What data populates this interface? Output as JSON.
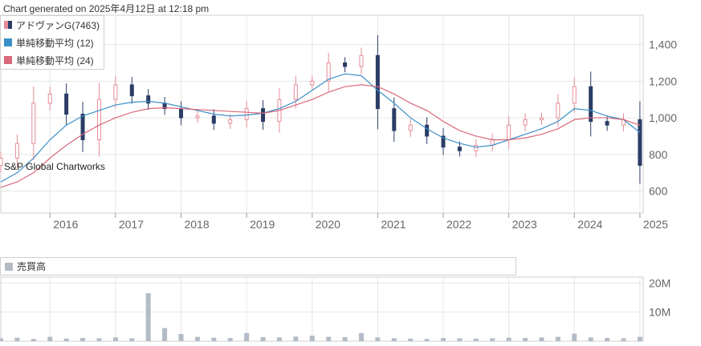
{
  "header": {
    "generated_text": "Chart generated on 2025年4月12日 at 12:18 pm"
  },
  "legend": [
    {
      "label": "アドヴァンG(7463)",
      "kind": "candle"
    },
    {
      "label": "単純移動平均 (12)",
      "color": "#3a8fc8"
    },
    {
      "label": "単純移動平均 (24)",
      "color": "#d9687a"
    }
  ],
  "watermark": "S&P Global Chartworks",
  "volume_legend": {
    "label": "売買高",
    "color": "#b3bcc6"
  },
  "colors": {
    "up": "#e58b98",
    "down": "#2b3d66",
    "volume": "#b3bcc6",
    "grid": "#e6e6e6"
  },
  "chart_data": [
    {
      "type": "candlestick",
      "x_tick_labels": [
        "2016",
        "2017",
        "2018",
        "2019",
        "2020",
        "2021",
        "2022",
        "2023",
        "2024",
        "2025"
      ],
      "y_tick_labels": [
        "600",
        "800",
        "1,000",
        "1,200",
        "1,400"
      ],
      "yticks": [
        600,
        800,
        1000,
        1200,
        1400
      ],
      "ylim": [
        480,
        1560
      ],
      "xlim": [
        2015.25,
        2025.05
      ],
      "grid": true,
      "x": [
        2015.25,
        2015.5,
        2015.75,
        2016,
        2016.25,
        2016.5,
        2016.75,
        2017,
        2017.25,
        2017.5,
        2017.75,
        2018,
        2018.25,
        2018.5,
        2018.75,
        2019,
        2019.25,
        2019.5,
        2019.75,
        2020,
        2020.25,
        2020.5,
        2020.75,
        2021,
        2021.25,
        2021.5,
        2021.75,
        2022,
        2022.25,
        2022.5,
        2022.75,
        2023,
        2023.25,
        2023.5,
        2023.75,
        2024,
        2024.25,
        2024.5,
        2024.75,
        2025
      ],
      "close": [
        780,
        860,
        1080,
        1130,
        1020,
        880,
        1100,
        1180,
        1120,
        1080,
        1050,
        1000,
        1010,
        970,
        990,
        1050,
        980,
        1100,
        1180,
        1200,
        1300,
        1280,
        1340,
        1050,
        930,
        960,
        900,
        840,
        820,
        850,
        880,
        960,
        990,
        1000,
        1080,
        1170,
        980,
        960,
        990,
        740
      ],
      "series": [
        {
          "name": "単純移動平均 (12)",
          "values": [
            650,
            700,
            780,
            880,
            960,
            1010,
            1040,
            1070,
            1085,
            1090,
            1080,
            1060,
            1040,
            1020,
            1010,
            1015,
            1025,
            1050,
            1090,
            1150,
            1210,
            1240,
            1230,
            1150,
            1080,
            1000,
            940,
            890,
            860,
            840,
            850,
            880,
            910,
            940,
            980,
            1050,
            1040,
            1010,
            990,
            920
          ]
        },
        {
          "name": "単純移動平均 (24)",
          "values": [
            620,
            650,
            700,
            780,
            850,
            910,
            960,
            1000,
            1030,
            1050,
            1055,
            1050,
            1045,
            1040,
            1035,
            1030,
            1025,
            1040,
            1070,
            1100,
            1140,
            1170,
            1180,
            1170,
            1130,
            1080,
            1040,
            980,
            930,
            900,
            880,
            880,
            890,
            910,
            940,
            990,
            1000,
            1000,
            990,
            960
          ]
        }
      ]
    },
    {
      "type": "bar",
      "title": "売買高",
      "y_tick_labels": [
        "10M",
        "20M"
      ],
      "yticks": [
        10000000,
        20000000
      ],
      "ylim": [
        0,
        22000000
      ],
      "x": [
        2015.25,
        2015.5,
        2015.75,
        2016,
        2016.25,
        2016.5,
        2016.75,
        2017,
        2017.25,
        2017.5,
        2017.75,
        2018,
        2018.25,
        2018.5,
        2018.75,
        2019,
        2019.25,
        2019.5,
        2019.75,
        2020,
        2020.25,
        2020.5,
        2020.75,
        2021,
        2021.25,
        2021.5,
        2021.75,
        2022,
        2022.25,
        2022.5,
        2022.75,
        2023,
        2023.25,
        2023.5,
        2023.75,
        2024,
        2024.25,
        2024.5,
        2024.75,
        2025
      ],
      "values": [
        1000000,
        1200000,
        800000,
        1500000,
        900000,
        1100000,
        1000000,
        1300000,
        1000000,
        16500000,
        4500000,
        2500000,
        1500000,
        1200000,
        1100000,
        2800000,
        1400000,
        1300000,
        1600000,
        1900000,
        1500000,
        1400000,
        2800000,
        1300000,
        1000000,
        900000,
        800000,
        1100000,
        1000000,
        900000,
        1000000,
        1200000,
        1100000,
        1300000,
        1500000,
        2600000,
        1300000,
        1100000,
        1000000,
        1500000
      ]
    }
  ]
}
